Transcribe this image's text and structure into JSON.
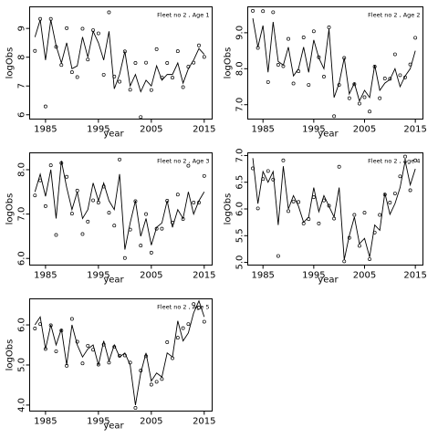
{
  "chart_data": [
    {
      "type": "line",
      "title": "Fleet no 2 , Age 1",
      "xlabel": "year",
      "ylabel": "logObs",
      "x_ticks": [
        1985,
        1995,
        2005,
        2015
      ],
      "y_ticks": [
        6,
        7,
        8,
        9
      ],
      "xlim": [
        1982,
        2016.5
      ],
      "ylim": [
        5.85,
        9.75
      ],
      "x": [
        1983,
        1984,
        1985,
        1986,
        1987,
        1988,
        1989,
        1990,
        1991,
        1992,
        1993,
        1994,
        1995,
        1996,
        1997,
        1998,
        1999,
        2000,
        2001,
        2002,
        2003,
        2004,
        2005,
        2006,
        2007,
        2008,
        2009,
        2010,
        2011,
        2012,
        2013,
        2014,
        2015
      ],
      "series": [
        {
          "values": [
            8.22,
            9.33,
            6.29,
            9.33,
            8.36,
            7.73,
            9.01,
            7.48,
            7.31,
            8.99,
            7.92,
            8.94,
            8.83,
            7.39,
            9.56,
            7.33,
            7.15,
            8.2,
            6.87,
            7.8,
            5.92,
            7.81,
            6.86,
            8.28,
            7.3,
            7.8,
            7.29,
            8.21,
            6.96,
            7.67,
            7.81,
            8.41,
            8.01
          ],
          "style": "points"
        },
        {
          "values": [
            8.7,
            9.3,
            7.9,
            9.3,
            8.4,
            7.8,
            8.5,
            7.6,
            7.7,
            8.7,
            8.0,
            8.9,
            8.5,
            7.9,
            8.9,
            6.9,
            7.4,
            8.2,
            7.0,
            7.4,
            6.8,
            7.2,
            7.0,
            7.7,
            7.2,
            7.4,
            7.4,
            7.8,
            7.1,
            7.6,
            7.9,
            8.3,
            8.1
          ],
          "style": "line"
        }
      ]
    },
    {
      "type": "line",
      "title": "Fleet no 2 , Age 2",
      "xlabel": "year",
      "ylabel": "logObs",
      "x_ticks": [
        1985,
        1995,
        2005,
        2015
      ],
      "y_ticks": [
        7.0,
        8.0,
        9.0
      ],
      "xlim": [
        1982,
        2016.5
      ],
      "ylim": [
        6.6,
        9.72
      ],
      "x": [
        1983,
        1984,
        1985,
        1986,
        1987,
        1988,
        1989,
        1990,
        1991,
        1992,
        1993,
        1994,
        1995,
        1996,
        1997,
        1998,
        1999,
        2000,
        2001,
        2002,
        2003,
        2004,
        2005,
        2006,
        2007,
        2008,
        2009,
        2010,
        2011,
        2012,
        2013,
        2014,
        2015
      ],
      "series": [
        {
          "values": [
            9.61,
            8.58,
            9.6,
            7.63,
            9.57,
            8.11,
            8.07,
            8.83,
            7.59,
            7.93,
            8.87,
            7.55,
            9.04,
            8.32,
            7.78,
            9.15,
            6.68,
            7.55,
            8.3,
            7.18,
            7.57,
            7.03,
            7.21,
            6.81,
            8.06,
            7.18,
            7.73,
            7.72,
            8.4,
            7.82,
            7.76,
            8.12,
            8.86
          ],
          "style": "points"
        },
        {
          "values": [
            9.4,
            8.6,
            9.2,
            7.9,
            9.3,
            8.2,
            8.1,
            8.6,
            7.8,
            8.0,
            8.6,
            7.9,
            8.8,
            8.3,
            8.0,
            9.1,
            7.2,
            7.6,
            8.3,
            7.3,
            7.6,
            7.1,
            7.4,
            7.2,
            8.1,
            7.4,
            7.6,
            7.7,
            8.0,
            7.5,
            7.8,
            8.0,
            8.5
          ],
          "style": "line"
        }
      ]
    },
    {
      "type": "line",
      "title": "Fleet no 2 , Age 3",
      "xlabel": "year",
      "ylabel": "logObs",
      "x_ticks": [
        1985,
        1995,
        2005,
        2015
      ],
      "y_ticks": [
        6.0,
        7.0,
        8.0
      ],
      "xlim": [
        1982,
        2016.5
      ],
      "ylim": [
        5.85,
        8.38
      ],
      "x": [
        1983,
        1984,
        1985,
        1986,
        1987,
        1988,
        1989,
        1990,
        1991,
        1992,
        1993,
        1994,
        1995,
        1996,
        1997,
        1998,
        1999,
        2000,
        2001,
        2002,
        2003,
        2004,
        2005,
        2006,
        2007,
        2008,
        2009,
        2010,
        2011,
        2012,
        2013,
        2014,
        2015
      ],
      "series": [
        {
          "values": [
            7.42,
            7.76,
            7.18,
            8.1,
            6.53,
            8.15,
            7.84,
            7.01,
            7.53,
            6.55,
            6.83,
            7.31,
            7.26,
            7.62,
            7.03,
            6.74,
            8.23,
            6.01,
            6.65,
            7.29,
            6.29,
            7.0,
            6.13,
            6.67,
            6.67,
            7.3,
            6.81,
            7.44,
            6.89,
            8.09,
            7.26,
            7.26,
            7.86
          ],
          "style": "points"
        },
        {
          "values": [
            7.5,
            7.9,
            7.4,
            8.0,
            6.9,
            8.2,
            7.6,
            7.1,
            7.5,
            6.9,
            7.1,
            7.7,
            7.3,
            7.7,
            7.3,
            7.1,
            7.9,
            6.2,
            6.8,
            7.3,
            6.5,
            6.9,
            6.3,
            6.7,
            6.8,
            7.3,
            6.7,
            7.1,
            6.9,
            7.5,
            7.0,
            7.3,
            7.5
          ],
          "style": "line"
        }
      ]
    },
    {
      "type": "line",
      "title": "Fleet no 2 , Age 4",
      "xlabel": "year",
      "ylabel": "logObs",
      "x_ticks": [
        1985,
        1995,
        2005,
        2015
      ],
      "y_ticks": [
        5.0,
        5.5,
        6.0,
        6.5,
        7.0
      ],
      "xlim": [
        1982,
        2016.5
      ],
      "ylim": [
        4.95,
        7.05
      ],
      "x": [
        1983,
        1984,
        1985,
        1986,
        1987,
        1988,
        1989,
        1990,
        1991,
        1992,
        1993,
        1994,
        1995,
        1996,
        1997,
        1998,
        1999,
        2000,
        2001,
        2002,
        2003,
        2004,
        2005,
        2006,
        2007,
        2008,
        2009,
        2010,
        2011,
        2012,
        2013,
        2014,
        2015
      ],
      "series": [
        {
          "values": [
            6.76,
            6.01,
            6.56,
            6.71,
            6.55,
            5.12,
            6.91,
            5.96,
            6.14,
            6.13,
            5.73,
            5.81,
            6.22,
            5.73,
            6.16,
            6.06,
            5.82,
            6.79,
            5.02,
            5.46,
            5.89,
            5.31,
            5.93,
            5.06,
            5.56,
            5.89,
            6.27,
            6.12,
            6.29,
            6.61,
            6.98,
            6.35,
            6.91
          ],
          "style": "points"
        },
        {
          "values": [
            6.95,
            6.1,
            6.7,
            6.5,
            6.7,
            5.7,
            6.8,
            6.0,
            6.25,
            6.05,
            5.75,
            5.85,
            6.4,
            5.95,
            6.25,
            6.05,
            5.85,
            6.4,
            5.05,
            5.5,
            5.85,
            5.35,
            5.45,
            5.1,
            5.7,
            5.6,
            6.3,
            5.9,
            6.1,
            6.4,
            6.9,
            6.45,
            6.75
          ],
          "style": "line"
        }
      ]
    },
    {
      "type": "line",
      "title": "Fleet no 2 , Age 5",
      "xlabel": "year",
      "ylabel": "logObs",
      "x_ticks": [
        1985,
        1995,
        2005,
        2015
      ],
      "y_ticks": [
        4.0,
        5.0,
        6.0
      ],
      "xlim": [
        1982,
        2016.5
      ],
      "ylim": [
        3.85,
        6.65
      ],
      "x": [
        1983,
        1984,
        1985,
        1986,
        1987,
        1988,
        1989,
        1990,
        1991,
        1992,
        1993,
        1994,
        1995,
        1996,
        1997,
        1998,
        1999,
        2000,
        2001,
        2002,
        2003,
        2004,
        2005,
        2006,
        2007,
        2008,
        2009,
        2010,
        2011,
        2012,
        2013,
        2014,
        2015
      ],
      "series": [
        {
          "values": [
            5.91,
            6.02,
            5.4,
            5.99,
            5.34,
            5.86,
            4.98,
            6.15,
            5.58,
            5.04,
            5.48,
            5.38,
            5.01,
            5.51,
            5.06,
            5.45,
            5.23,
            5.24,
            5.06,
            3.93,
            4.86,
            5.22,
            4.51,
            4.58,
            4.65,
            5.57,
            5.17,
            5.68,
            5.92,
            6.02,
            6.52,
            6.43,
            6.08
          ],
          "style": "points"
        },
        {
          "values": [
            6.0,
            6.2,
            5.4,
            6.0,
            5.5,
            5.9,
            5.0,
            6.0,
            5.5,
            5.2,
            5.4,
            5.5,
            5.0,
            5.6,
            5.1,
            5.5,
            5.2,
            5.3,
            5.0,
            4.0,
            4.8,
            5.3,
            4.6,
            4.8,
            4.7,
            5.3,
            5.2,
            6.1,
            5.6,
            5.8,
            6.3,
            6.6,
            6.2
          ],
          "style": "line"
        }
      ]
    }
  ]
}
